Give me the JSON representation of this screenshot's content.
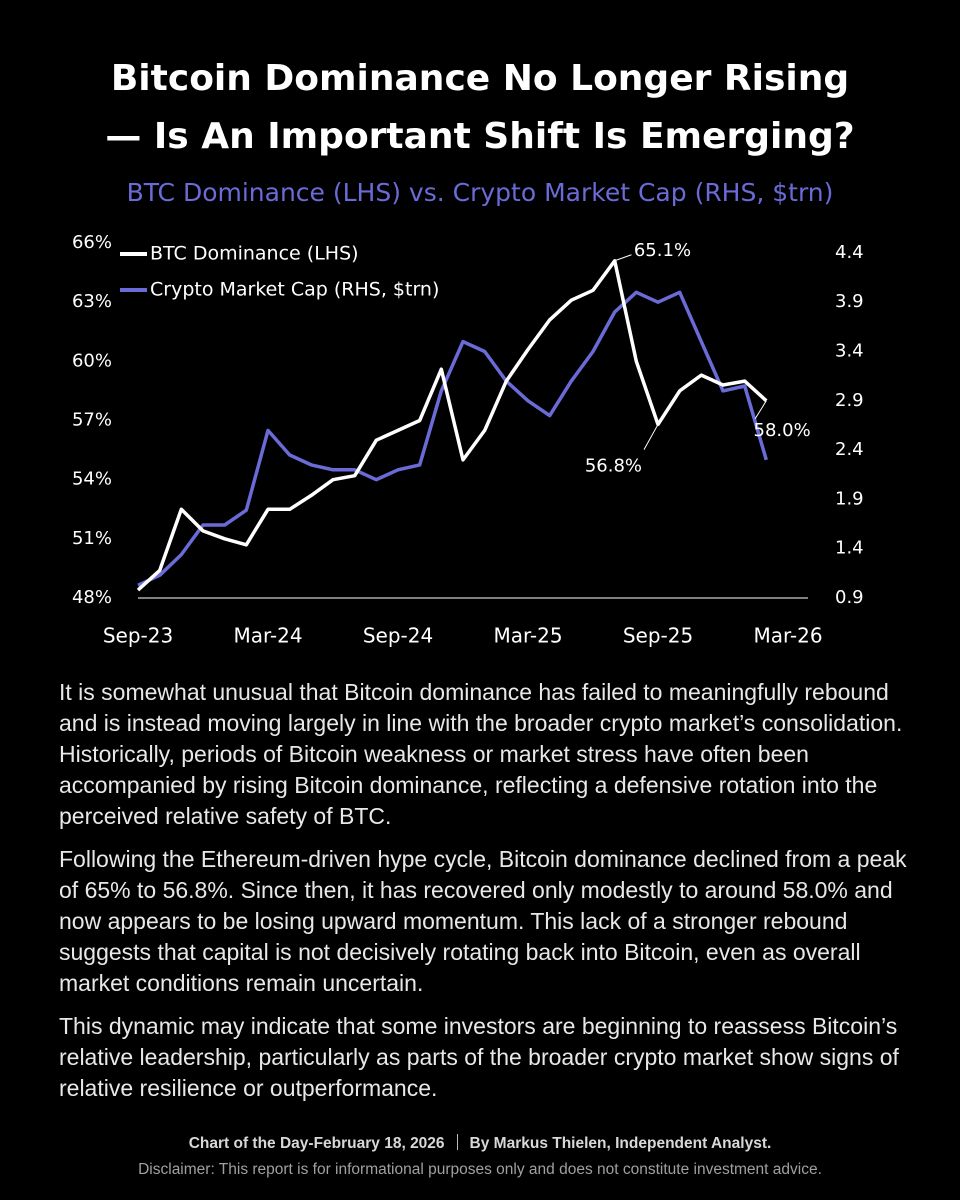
{
  "title_lines": [
    "Bitcoin Dominance No Longer Rising",
    "— Is An Important Shift Is Emerging?"
  ],
  "chart_data": {
    "type": "line",
    "subtitle": "BTC Dominance (LHS) vs. Crypto Market Cap (RHS, $trn)",
    "categories": [
      "Sep-23",
      null,
      null,
      null,
      null,
      null,
      "Mar-24",
      null,
      null,
      null,
      null,
      null,
      "Sep-24",
      null,
      null,
      null,
      null,
      null,
      "Mar-25",
      null,
      null,
      null,
      null,
      null,
      "Sep-25",
      null,
      null,
      null,
      null,
      null,
      "Mar-26"
    ],
    "series": [
      {
        "name": "BTC Dominance (LHS)",
        "color": "#ffffff",
        "values": [
          48.4,
          49.4,
          52.5,
          51.4,
          51,
          50.7,
          52.5,
          52.5,
          53.2,
          54,
          54.2,
          56,
          56.5,
          57,
          59.6,
          55,
          56.5,
          59,
          60.6,
          62.1,
          63.1,
          63.6,
          65.1,
          60,
          56.8,
          58.5,
          59.3,
          58.8,
          59,
          58.0,
          null
        ],
        "value_labels": [
          null,
          null,
          null,
          null,
          null,
          null,
          null,
          null,
          null,
          null,
          null,
          null,
          null,
          null,
          null,
          null,
          null,
          null,
          null,
          null,
          null,
          null,
          "65.1%",
          null,
          "56.8%",
          null,
          null,
          null,
          null,
          "58.0%",
          null
        ]
      },
      {
        "name": "Crypto Market Cap (RHS, $trn)",
        "color": "#6b6bd8",
        "axis": "y2",
        "values": [
          1.03,
          1.13,
          1.34,
          1.64,
          1.64,
          1.79,
          2.6,
          2.35,
          2.25,
          2.2,
          2.2,
          2.1,
          2.2,
          2.25,
          3.0,
          3.5,
          3.4,
          3.1,
          2.9,
          2.75,
          3.1,
          3.4,
          3.8,
          4.0,
          3.9,
          4.0,
          3.5,
          3.0,
          3.05,
          2.3,
          null
        ]
      }
    ],
    "ylim": [
      48,
      66
    ],
    "yticks": [
      {
        "value": 48,
        "label": "48%"
      },
      {
        "value": 51,
        "label": "51%"
      },
      {
        "value": 54,
        "label": "54%"
      },
      {
        "value": 57,
        "label": "57%"
      },
      {
        "value": 60,
        "label": "60%"
      },
      {
        "value": 63,
        "label": "63%"
      },
      {
        "value": 66,
        "label": "66%"
      }
    ],
    "y2lim": [
      0.9,
      4.5
    ],
    "y2ticks": [
      0.9,
      1.4,
      1.9,
      2.4,
      2.9,
      3.4,
      3.9,
      4.4
    ],
    "legend": "upper left",
    "grid": false
  },
  "paragraphs": [
    "It is somewhat unusual that Bitcoin dominance has failed to meaningfully rebound and is instead moving largely in line with the broader crypto market’s consolidation. Historically, periods of Bitcoin weakness or market stress have often been accompanied by rising Bitcoin dominance, reflecting a defensive rotation into the perceived relative safety of BTC.",
    "Following the Ethereum-driven hype cycle, Bitcoin dominance declined from a peak of 65% to 56.8%. Since then, it has recovered only modestly to around 58.0% and now appears to be losing upward momentum. This lack of a stronger rebound suggests that capital is not decisively rotating back into Bitcoin, even as overall market conditions remain uncertain.",
    "This dynamic may indicate that some investors are beginning to reassess Bitcoin’s relative leadership, particularly as parts of the broader crypto market show signs of relative resilience or outperformance."
  ],
  "footer": {
    "date": "Chart of the Day-February 18, 2026",
    "author": "By Markus Thielen, Independent Analyst.",
    "disclaimer": "Disclaimer: This report is for informational purposes only and does not constitute investment advice."
  }
}
